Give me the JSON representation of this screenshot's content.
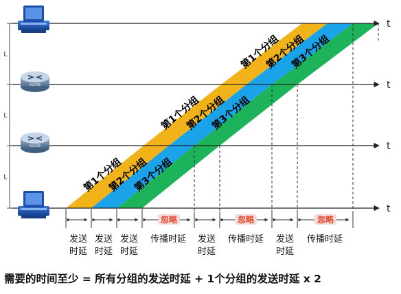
{
  "axis_label": "t",
  "distance_label": "L",
  "router_caption": "ROUTER",
  "packets": {
    "p1": "第1个分组",
    "p2": "第2个分组",
    "p3": "第3个分组"
  },
  "labels": {
    "send_line1": "发送",
    "send_line2": "时延",
    "propagation": "传播时延",
    "ignore": "忽略"
  },
  "formula": "需要的时间至少 = 所有分组的发送时延 + 1个分组的发送时延 x 2",
  "colors": {
    "packet1": "#f2b21a",
    "packet2": "#1aa3e8",
    "packet3": "#1cb35a",
    "ignore_text": "#e8452c",
    "ignore_box": "#f4dada"
  }
}
